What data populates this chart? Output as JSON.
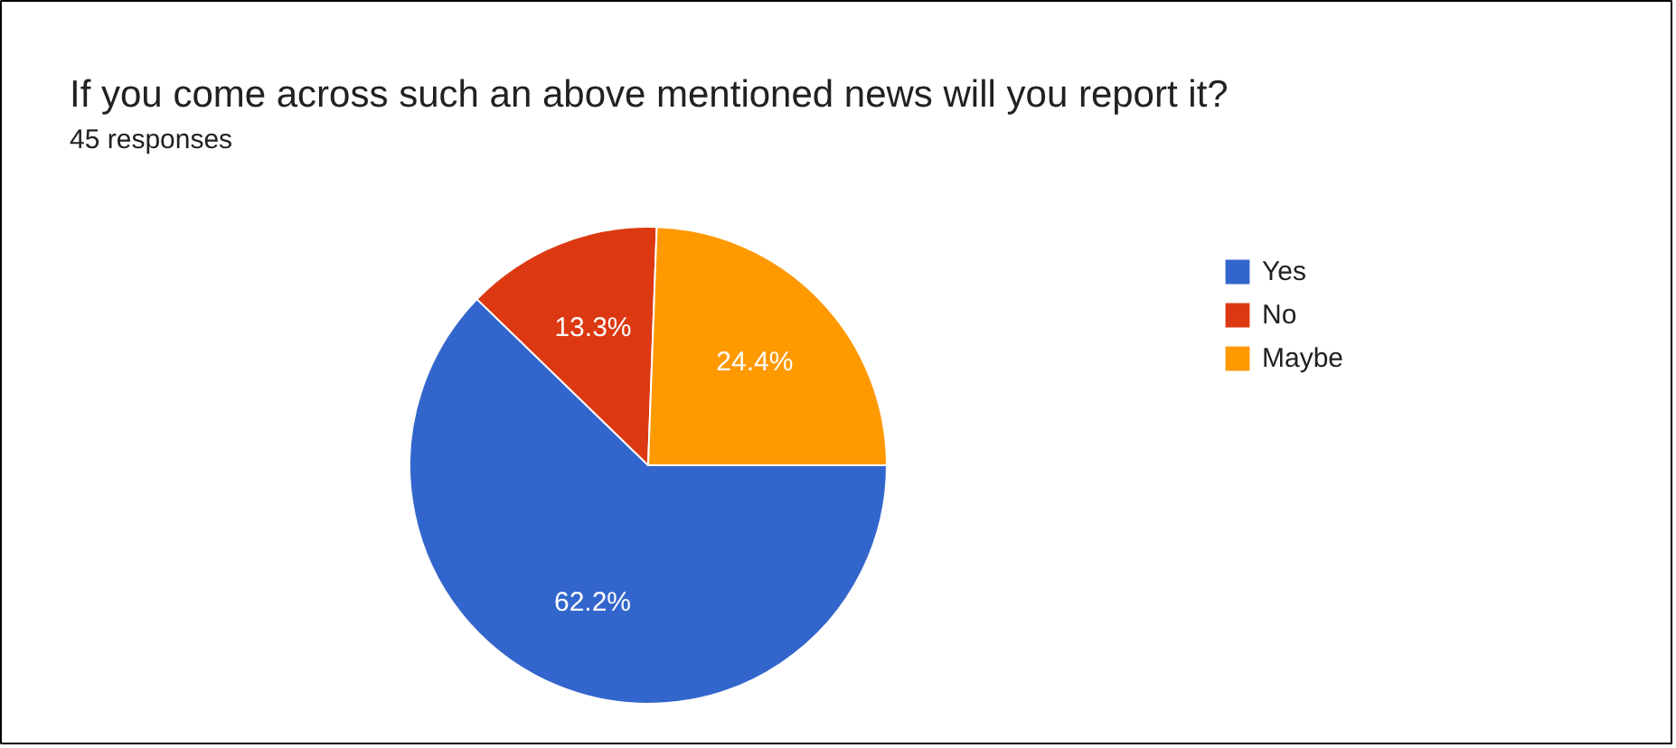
{
  "chart_data": {
    "type": "pie",
    "title": "If you come across such an above mentioned  news will you report it?",
    "subtitle": "45 responses",
    "categories": [
      "Yes",
      "No",
      "Maybe"
    ],
    "values": [
      62.2,
      13.3,
      24.4
    ],
    "colors": [
      "#3366cc",
      "#dc3912",
      "#ff9900"
    ],
    "value_labels": [
      "62.2%",
      "13.3%",
      "24.4%"
    ],
    "legend": "right"
  }
}
